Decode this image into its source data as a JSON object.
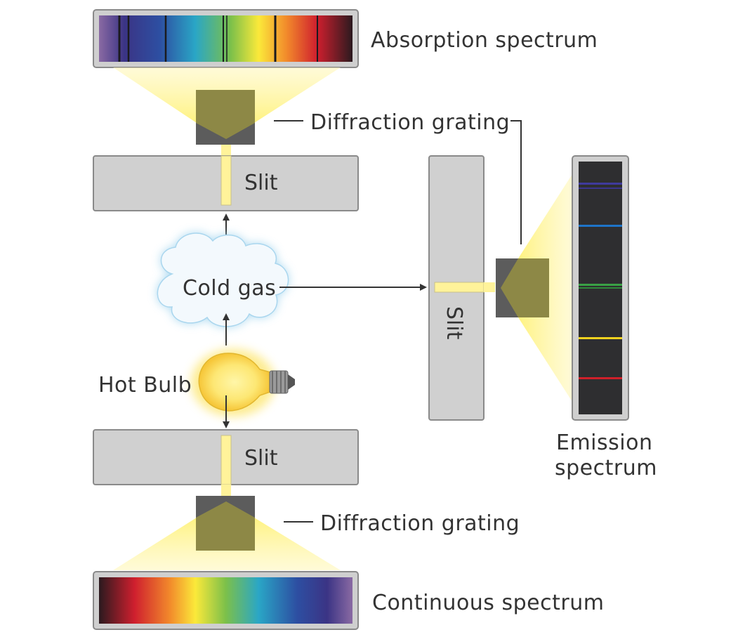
{
  "labels": {
    "absorption_spectrum": "Absorption spectrum",
    "diffraction_grating_top": "Diffraction grating",
    "slit_top": "Slit",
    "cold_gas": "Cold gas",
    "hot_bulb": "Hot Bulb",
    "slit_bottom": "Slit",
    "diffraction_grating_bottom": "Diffraction grating",
    "continuous_spectrum": "Continuous spectrum",
    "slit_side": "Slit",
    "emission_spectrum_line1": "Emission",
    "emission_spectrum_line2": "spectrum"
  },
  "colors": {
    "panel": "#d0d0d0",
    "panel_border": "#8a8a8a",
    "grating": "#5a5a5a",
    "light_beam": "#fff39a",
    "emission_bg": "#2e2e30",
    "cloud_fill": "#eef7fc",
    "cloud_glow": "#9fd3ee",
    "bulb": "#fdd44a"
  },
  "emission_lines": [
    "violet",
    "blue",
    "green",
    "yellow",
    "red"
  ]
}
